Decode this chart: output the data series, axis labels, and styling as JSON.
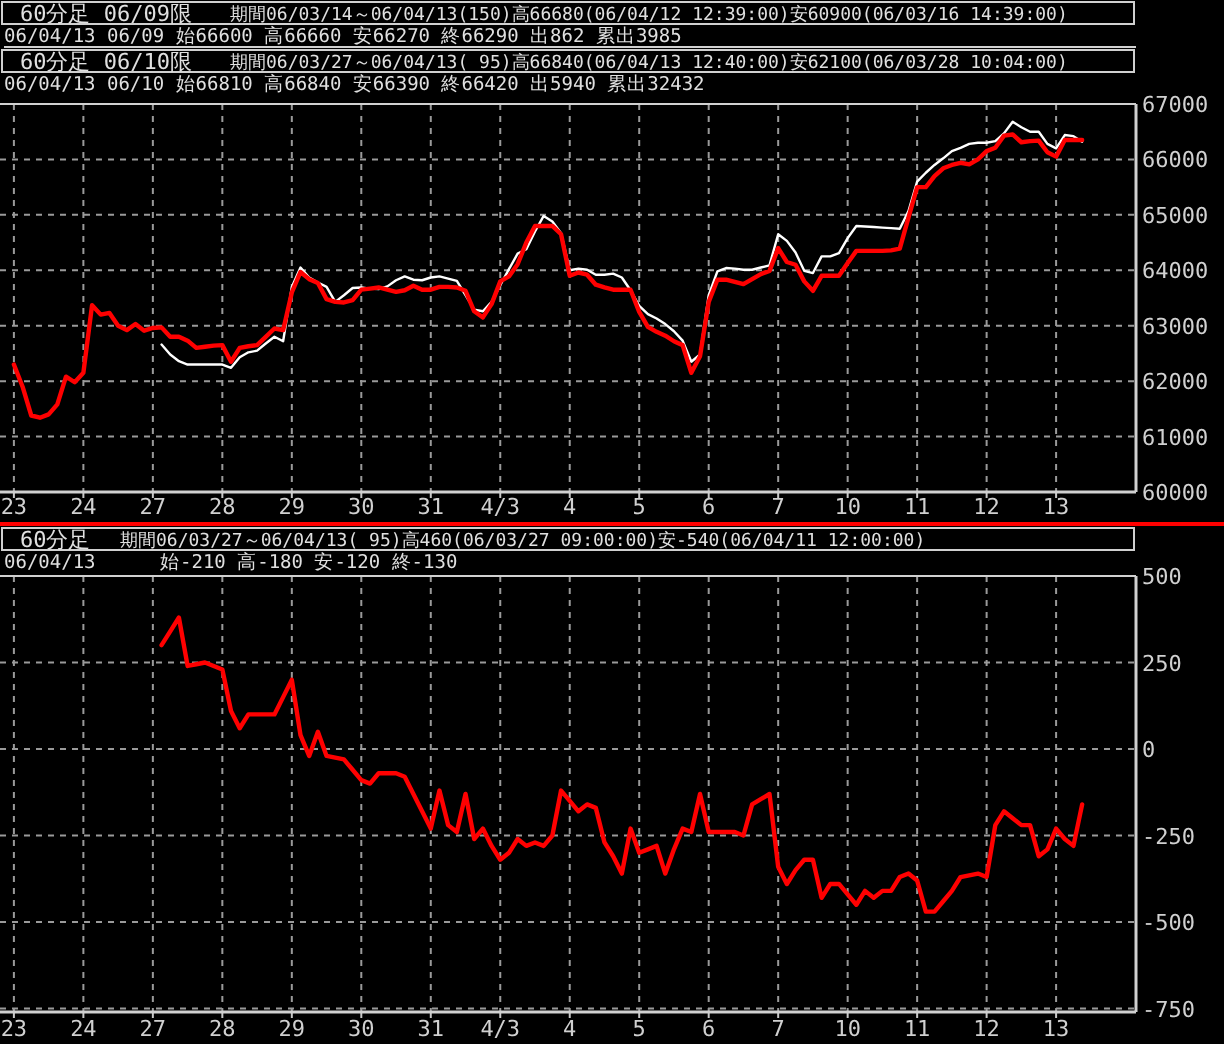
{
  "chart_data": [
    {
      "type": "line",
      "grid": true,
      "annotations": [
        "60分足 06/09限",
        "期間06/03/14～06/04/13(150)高66680(06/04/12 12:39:00)安60900(06/03/16 14:39:00)",
        "06/04/13 06/09 始66600 高66660 安66270 終66290 出862 累出3985",
        "60分足 06/10限",
        "期間06/03/27～06/04/13( 95)高66840(06/04/13 12:40:00)安62100(06/03/28 10:04:00)",
        "06/04/13 06/10 始66810 高66840 安66390 終66420 出5940 累出32432"
      ],
      "categories": [
        "23",
        null,
        null,
        null,
        null,
        null,
        null,
        null,
        "24",
        null,
        null,
        null,
        null,
        null,
        null,
        null,
        "27",
        null,
        null,
        null,
        null,
        null,
        null,
        null,
        "28",
        null,
        null,
        null,
        null,
        null,
        null,
        null,
        "29",
        null,
        null,
        null,
        null,
        null,
        null,
        null,
        "30",
        null,
        null,
        null,
        null,
        null,
        null,
        null,
        "31",
        null,
        null,
        null,
        null,
        null,
        null,
        null,
        "4/3",
        null,
        null,
        null,
        null,
        null,
        null,
        null,
        "4",
        null,
        null,
        null,
        null,
        null,
        null,
        null,
        "5",
        null,
        null,
        null,
        null,
        null,
        null,
        null,
        "6",
        null,
        null,
        null,
        null,
        null,
        null,
        null,
        "7",
        null,
        null,
        null,
        null,
        null,
        null,
        null,
        "10",
        null,
        null,
        null,
        null,
        null,
        null,
        null,
        "11",
        null,
        null,
        null,
        null,
        null,
        null,
        null,
        "12",
        null,
        null,
        null,
        null,
        null,
        null,
        null,
        "13",
        null,
        null,
        null
      ],
      "ylim": [
        60000,
        67000
      ],
      "yticks": [
        60000,
        61000,
        62000,
        63000,
        64000,
        65000,
        66000,
        67000
      ],
      "series": [
        {
          "color": "#ffffff",
          "values": [
            null,
            null,
            null,
            null,
            null,
            null,
            null,
            null,
            null,
            null,
            null,
            null,
            null,
            null,
            null,
            null,
            null,
            62660,
            62480,
            62360,
            62300,
            62300,
            62300,
            62300,
            62300,
            62240,
            62430,
            62520,
            62550,
            62680,
            62800,
            62720,
            63700,
            64050,
            63870,
            63780,
            63700,
            63430,
            63550,
            63680,
            63690,
            63670,
            63660,
            63710,
            63820,
            63890,
            63830,
            63820,
            63870,
            63890,
            63850,
            63810,
            63550,
            63290,
            63260,
            63430,
            63730,
            64020,
            64300,
            64380,
            64700,
            64980,
            64880,
            64670,
            64000,
            64030,
            64010,
            63920,
            63920,
            63940,
            63870,
            63640,
            63360,
            63210,
            63130,
            63030,
            62900,
            62730,
            62350,
            62480,
            63550,
            63980,
            64040,
            64030,
            64010,
            64010,
            64050,
            64090,
            64650,
            64530,
            64320,
            63990,
            63950,
            64250,
            64250,
            64310,
            64580,
            64800,
            64790,
            64780,
            64770,
            64760,
            64750,
            65070,
            65600,
            65760,
            65900,
            66020,
            66150,
            66210,
            66280,
            66300,
            66300,
            66330,
            66470,
            66680,
            66580,
            66500,
            66500,
            66280,
            66200,
            66440,
            66420,
            66320
          ]
        },
        {
          "color": "#ff0000",
          "values": [
            62300,
            61900,
            61380,
            61340,
            61400,
            61580,
            62080,
            61980,
            62150,
            63370,
            63200,
            63230,
            63000,
            62920,
            63030,
            62910,
            62960,
            62970,
            62800,
            62800,
            62730,
            62600,
            62620,
            62640,
            62650,
            62350,
            62600,
            62630,
            62650,
            62800,
            62950,
            62920,
            63600,
            63970,
            63840,
            63770,
            63480,
            63430,
            63420,
            63460,
            63650,
            63670,
            63690,
            63650,
            63610,
            63640,
            63720,
            63650,
            63650,
            63700,
            63700,
            63690,
            63630,
            63260,
            63150,
            63390,
            63800,
            63890,
            64110,
            64500,
            64800,
            64800,
            64800,
            64650,
            63900,
            63960,
            63920,
            63740,
            63690,
            63650,
            63650,
            63650,
            63250,
            62980,
            62890,
            62820,
            62720,
            62650,
            62150,
            62450,
            63430,
            63830,
            63830,
            63790,
            63750,
            63840,
            63930,
            63990,
            64400,
            64150,
            64100,
            63800,
            63630,
            63900,
            63900,
            63900,
            64130,
            64350,
            64350,
            64350,
            64350,
            64360,
            64390,
            64950,
            65500,
            65500,
            65700,
            65840,
            65900,
            65940,
            65910,
            66000,
            66150,
            66210,
            66430,
            66450,
            66310,
            66330,
            66340,
            66130,
            66050,
            66350,
            66350,
            66350
          ]
        }
      ]
    },
    {
      "type": "line",
      "grid": true,
      "annotations": [
        "60分足",
        "期間06/03/27～06/04/13( 95)高460(06/03/27 09:00:00)安-540(06/04/11 12:00:00)",
        "06/04/13",
        "始-210 高-180 安-120 終-130"
      ],
      "categories": [
        "23",
        null,
        null,
        null,
        null,
        null,
        null,
        null,
        "24",
        null,
        null,
        null,
        null,
        null,
        null,
        null,
        "27",
        null,
        null,
        null,
        null,
        null,
        null,
        null,
        "28",
        null,
        null,
        null,
        null,
        null,
        null,
        null,
        "29",
        null,
        null,
        null,
        null,
        null,
        null,
        null,
        "30",
        null,
        null,
        null,
        null,
        null,
        null,
        null,
        "31",
        null,
        null,
        null,
        null,
        null,
        null,
        null,
        "4/3",
        null,
        null,
        null,
        null,
        null,
        null,
        null,
        "4",
        null,
        null,
        null,
        null,
        null,
        null,
        null,
        "5",
        null,
        null,
        null,
        null,
        null,
        null,
        null,
        "6",
        null,
        null,
        null,
        null,
        null,
        null,
        null,
        "7",
        null,
        null,
        null,
        null,
        null,
        null,
        null,
        "10",
        null,
        null,
        null,
        null,
        null,
        null,
        null,
        "11",
        null,
        null,
        null,
        null,
        null,
        null,
        null,
        "12",
        null,
        null,
        null,
        null,
        null,
        null,
        null,
        "13",
        null,
        null,
        null
      ],
      "ylim": [
        -760,
        500
      ],
      "yticks": [
        -750,
        -500,
        -250,
        0,
        250,
        500
      ],
      "series": [
        {
          "color": "#ff0000",
          "values": [
            null,
            null,
            null,
            null,
            null,
            null,
            null,
            null,
            null,
            null,
            null,
            null,
            null,
            null,
            null,
            null,
            null,
            300,
            340,
            380,
            240,
            245,
            250,
            240,
            230,
            110,
            60,
            100,
            100,
            100,
            100,
            150,
            200,
            40,
            -20,
            50,
            -20,
            -25,
            -30,
            -60,
            -90,
            -100,
            -70,
            -70,
            -70,
            -80,
            -130,
            -180,
            -230,
            -120,
            -220,
            -240,
            -130,
            -260,
            -230,
            -280,
            -320,
            -300,
            -260,
            -280,
            -270,
            -280,
            -250,
            -120,
            -150,
            -180,
            -160,
            -170,
            -270,
            -310,
            -360,
            -230,
            -300,
            -290,
            -280,
            -360,
            -290,
            -230,
            -240,
            -130,
            -240,
            -240,
            -240,
            -240,
            -250,
            -160,
            -145,
            -130,
            -340,
            -390,
            -350,
            -320,
            -320,
            -430,
            -390,
            -390,
            -420,
            -450,
            -410,
            -430,
            -410,
            -410,
            -370,
            -360,
            -380,
            -470,
            -470,
            -440,
            -410,
            -370,
            -365,
            -360,
            -370,
            -220,
            -180,
            -200,
            -220,
            -220,
            -310,
            -290,
            -230,
            -260,
            -280,
            -160
          ]
        }
      ]
    }
  ]
}
